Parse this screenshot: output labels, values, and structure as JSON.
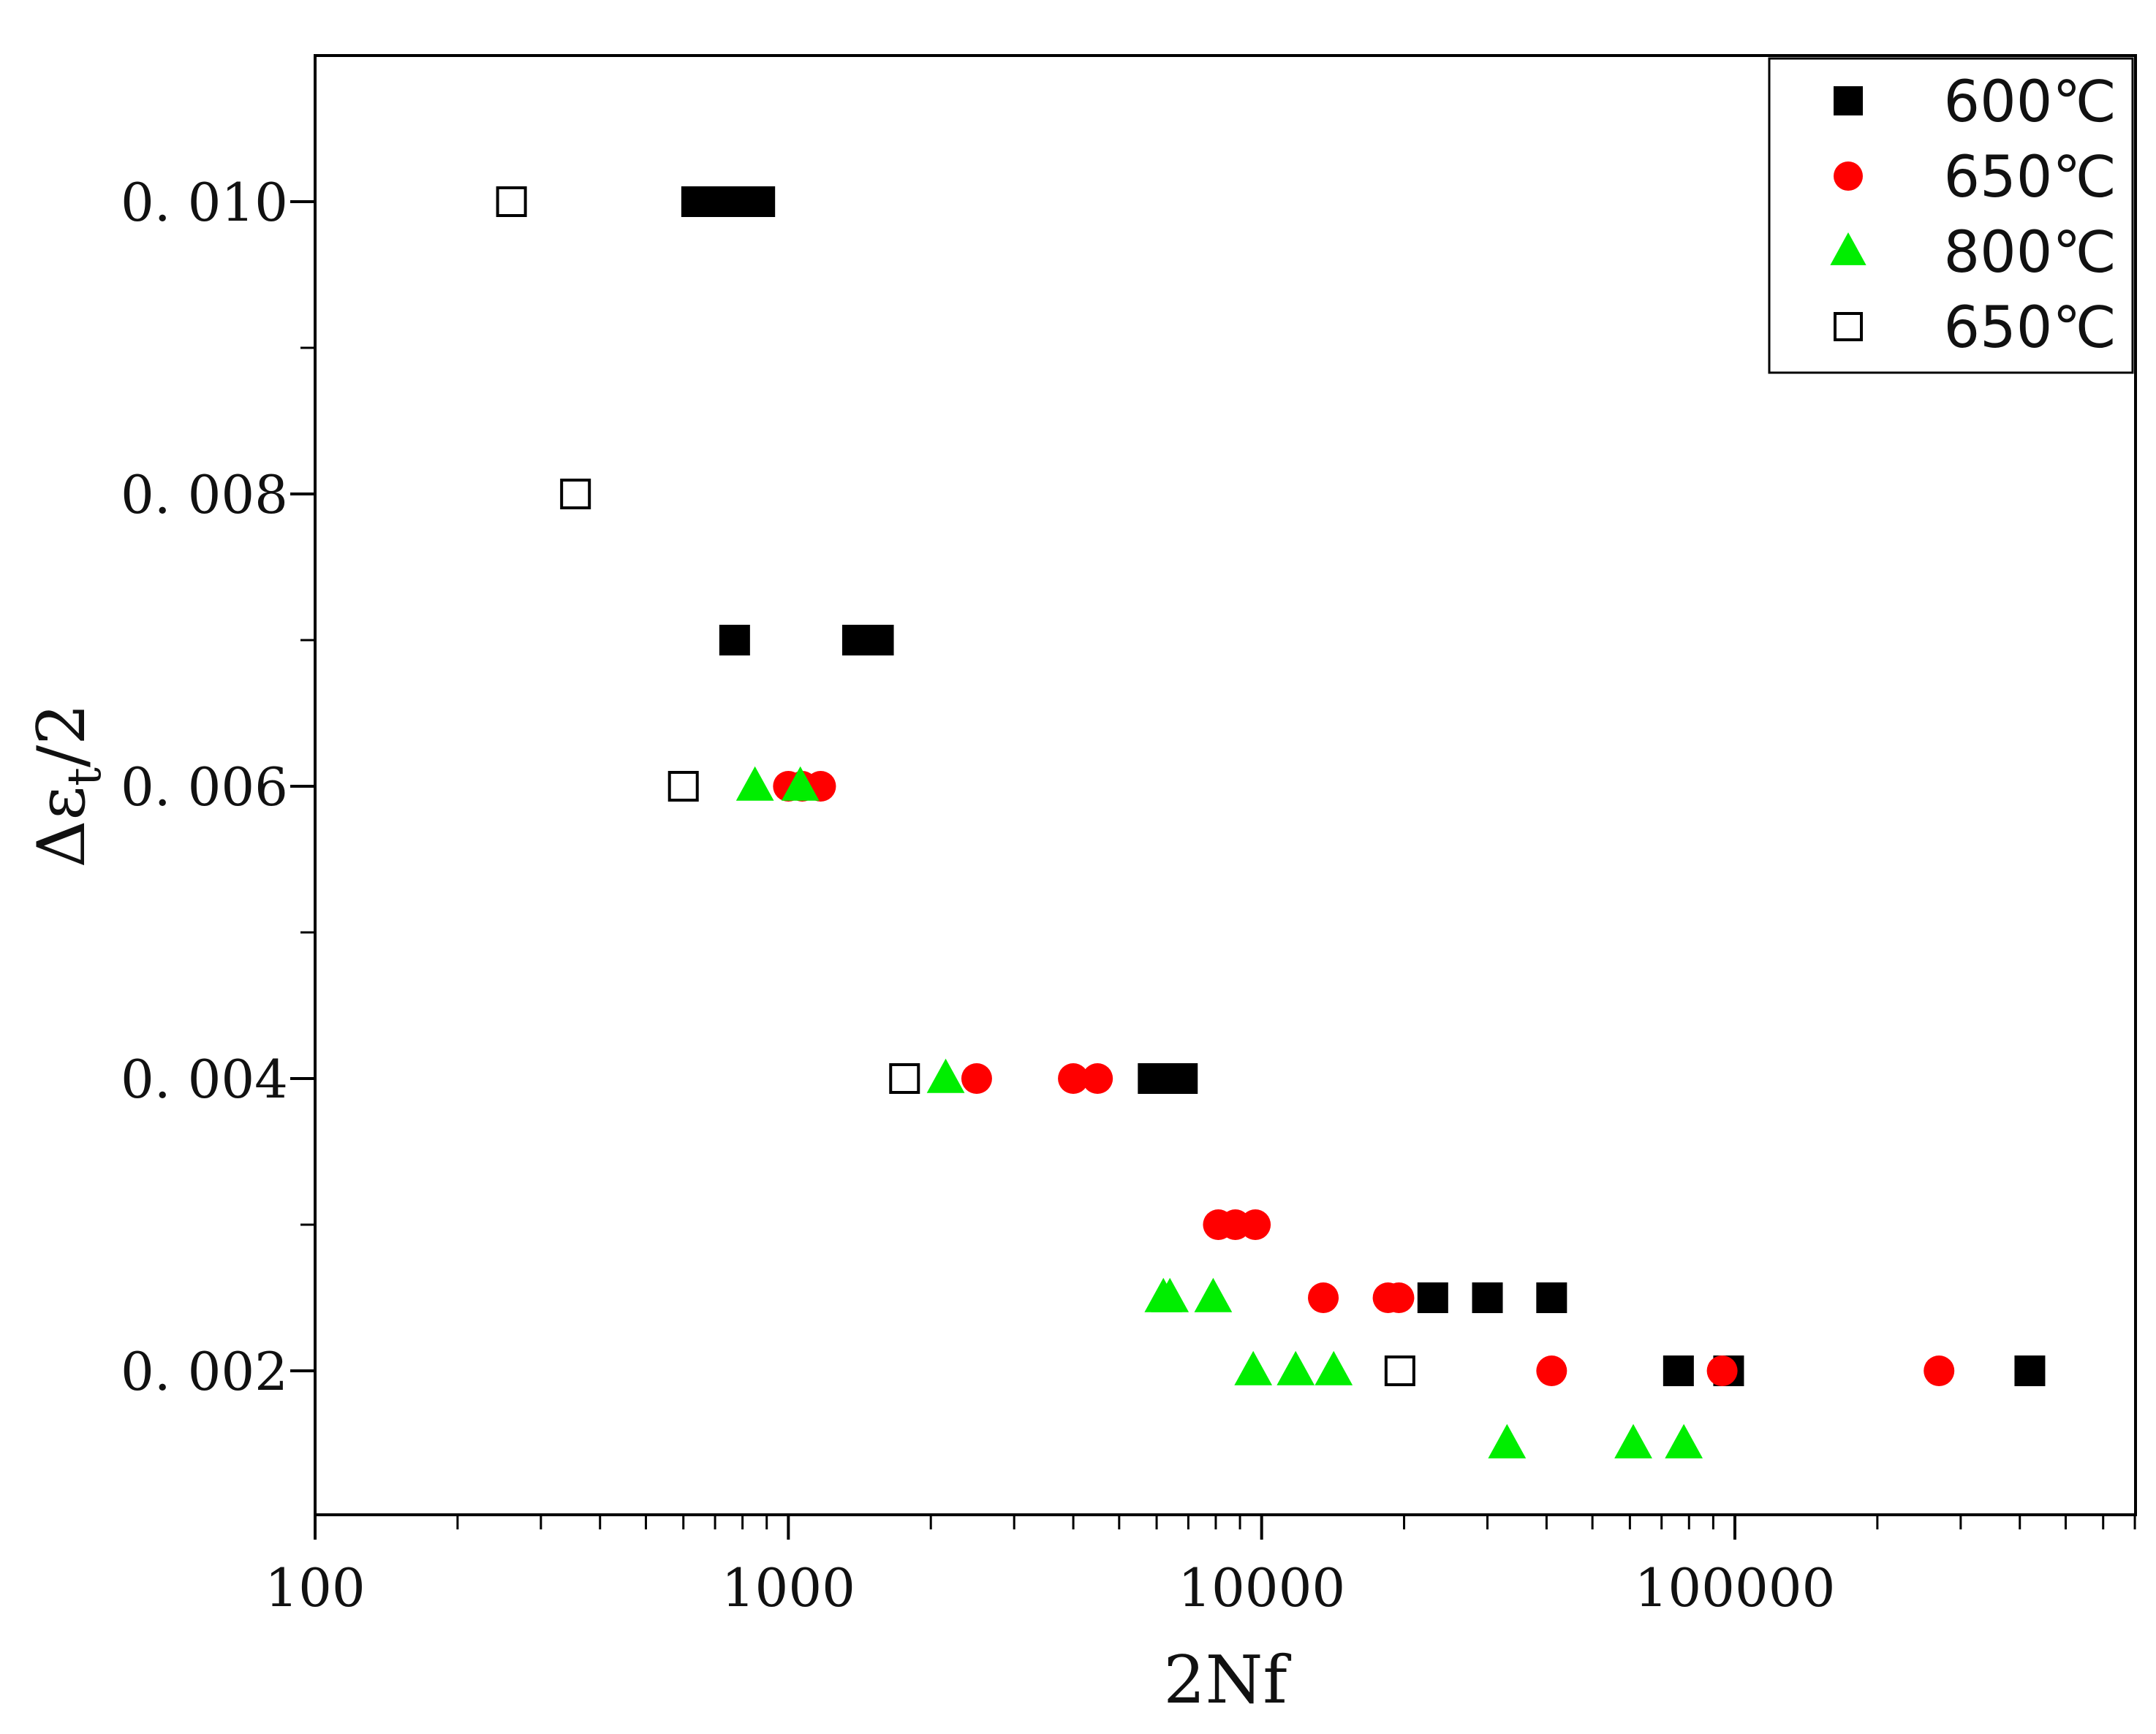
{
  "chart_data": {
    "type": "scatter",
    "xscale": "log",
    "xlim": [
      100,
      700000
    ],
    "ylim": [
      0.001,
      0.011
    ],
    "xlabel": "2Nf",
    "ylabel": "Δε",
    "ylabel_subscript": "t",
    "ylabel_suffix": "/2",
    "x_ticks": [
      100,
      1000,
      10000,
      100000
    ],
    "x_tick_labels": [
      "100",
      "1000",
      "10000",
      "100000"
    ],
    "y_ticks": [
      0.002,
      0.004,
      0.006,
      0.008,
      0.01
    ],
    "y_tick_labels": [
      "0. 002",
      "0. 004",
      "0. 006",
      "0. 008",
      "0. 010"
    ],
    "legend_position": "top-right",
    "series": [
      {
        "name": "600℃",
        "marker": "square-filled",
        "color": "#000000",
        "points": [
          [
            640,
            0.01
          ],
          [
            700,
            0.01
          ],
          [
            760,
            0.01
          ],
          [
            820,
            0.01
          ],
          [
            870,
            0.01
          ],
          [
            770,
            0.007
          ],
          [
            1400,
            0.007
          ],
          [
            1550,
            0.007
          ],
          [
            5900,
            0.004
          ],
          [
            6300,
            0.004
          ],
          [
            6800,
            0.004
          ],
          [
            23000,
            0.0025
          ],
          [
            30000,
            0.0025
          ],
          [
            41000,
            0.0025
          ],
          [
            76000,
            0.002
          ],
          [
            97000,
            0.002
          ],
          [
            420000,
            0.002
          ]
        ]
      },
      {
        "name": "650℃",
        "marker": "circle-filled",
        "color": "#ff0000",
        "points": [
          [
            1000,
            0.006
          ],
          [
            1070,
            0.006
          ],
          [
            1170,
            0.006
          ],
          [
            2500,
            0.004
          ],
          [
            4000,
            0.004
          ],
          [
            4500,
            0.004
          ],
          [
            8100,
            0.003
          ],
          [
            8800,
            0.003
          ],
          [
            9700,
            0.003
          ],
          [
            13500,
            0.0025
          ],
          [
            18500,
            0.0025
          ],
          [
            19500,
            0.0025
          ],
          [
            41000,
            0.002
          ],
          [
            94000,
            0.002
          ],
          [
            270000,
            0.002
          ]
        ]
      },
      {
        "name": "800℃",
        "marker": "triangle-filled",
        "color": "#00ee00",
        "points": [
          [
            850,
            0.006
          ],
          [
            1060,
            0.006
          ],
          [
            2150,
            0.004
          ],
          [
            6200,
            0.0025
          ],
          [
            6400,
            0.0025
          ],
          [
            7900,
            0.0025
          ],
          [
            9600,
            0.002
          ],
          [
            11800,
            0.002
          ],
          [
            14200,
            0.002
          ],
          [
            33000,
            0.0015
          ],
          [
            61000,
            0.0015
          ],
          [
            78000,
            0.0015
          ]
        ]
      },
      {
        "name": "650℃",
        "marker": "square-open",
        "color": "#000000",
        "points": [
          [
            260,
            0.01
          ],
          [
            355,
            0.008
          ],
          [
            600,
            0.006
          ],
          [
            1760,
            0.004
          ],
          [
            19600,
            0.002
          ]
        ]
      }
    ]
  }
}
